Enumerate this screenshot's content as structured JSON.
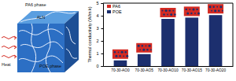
{
  "chart_data": {
    "type": "bar",
    "y_label": "Thermal conductivity (W/m k)",
    "categories": [
      "70-30-AO0",
      "70-30-AO5",
      "70-30-AO10",
      "70-30-AO15",
      "70-30-AO20"
    ],
    "values": [
      0.45,
      0.95,
      3.75,
      3.85,
      4.05
    ],
    "color": "#1c2f6e",
    "ylim": [
      0,
      5
    ],
    "yticks": [
      0,
      1,
      2,
      3,
      4,
      5
    ],
    "annotations": [
      {
        "text": "PA6",
        "color": "#d42a22"
      },
      {
        "text": "POE",
        "color": "#1c2f6e"
      }
    ]
  },
  "diagram": {
    "labels": [
      "PA6 phase",
      "ALN",
      "POE phase",
      "Heat"
    ]
  }
}
